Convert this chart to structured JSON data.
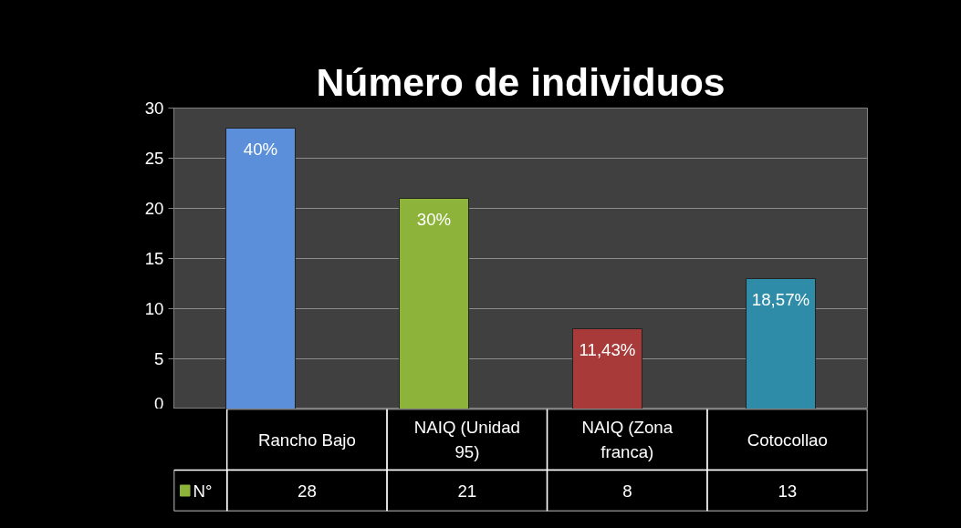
{
  "chart_data": {
    "type": "bar",
    "title": "Número de individuos",
    "categories": [
      "Rancho Bajo",
      "NAIQ (Unidad 95)",
      "NAIQ (Zona franca)",
      "Cotocollao"
    ],
    "series": [
      {
        "name": "N°",
        "color": "#8db33a",
        "colors": [
          "#5b8fd9",
          "#8db33a",
          "#a83a3a",
          "#2e8ca8"
        ],
        "values": [
          28,
          21,
          8,
          13
        ]
      }
    ],
    "annotations": [
      "40%",
      "30%",
      "11,43%",
      "18,57%"
    ],
    "ylim": [
      0,
      30
    ],
    "yticks": [
      0,
      5,
      10,
      15,
      20,
      25,
      30
    ],
    "grid": "y",
    "data_labels": true,
    "legend": "bottom left"
  }
}
